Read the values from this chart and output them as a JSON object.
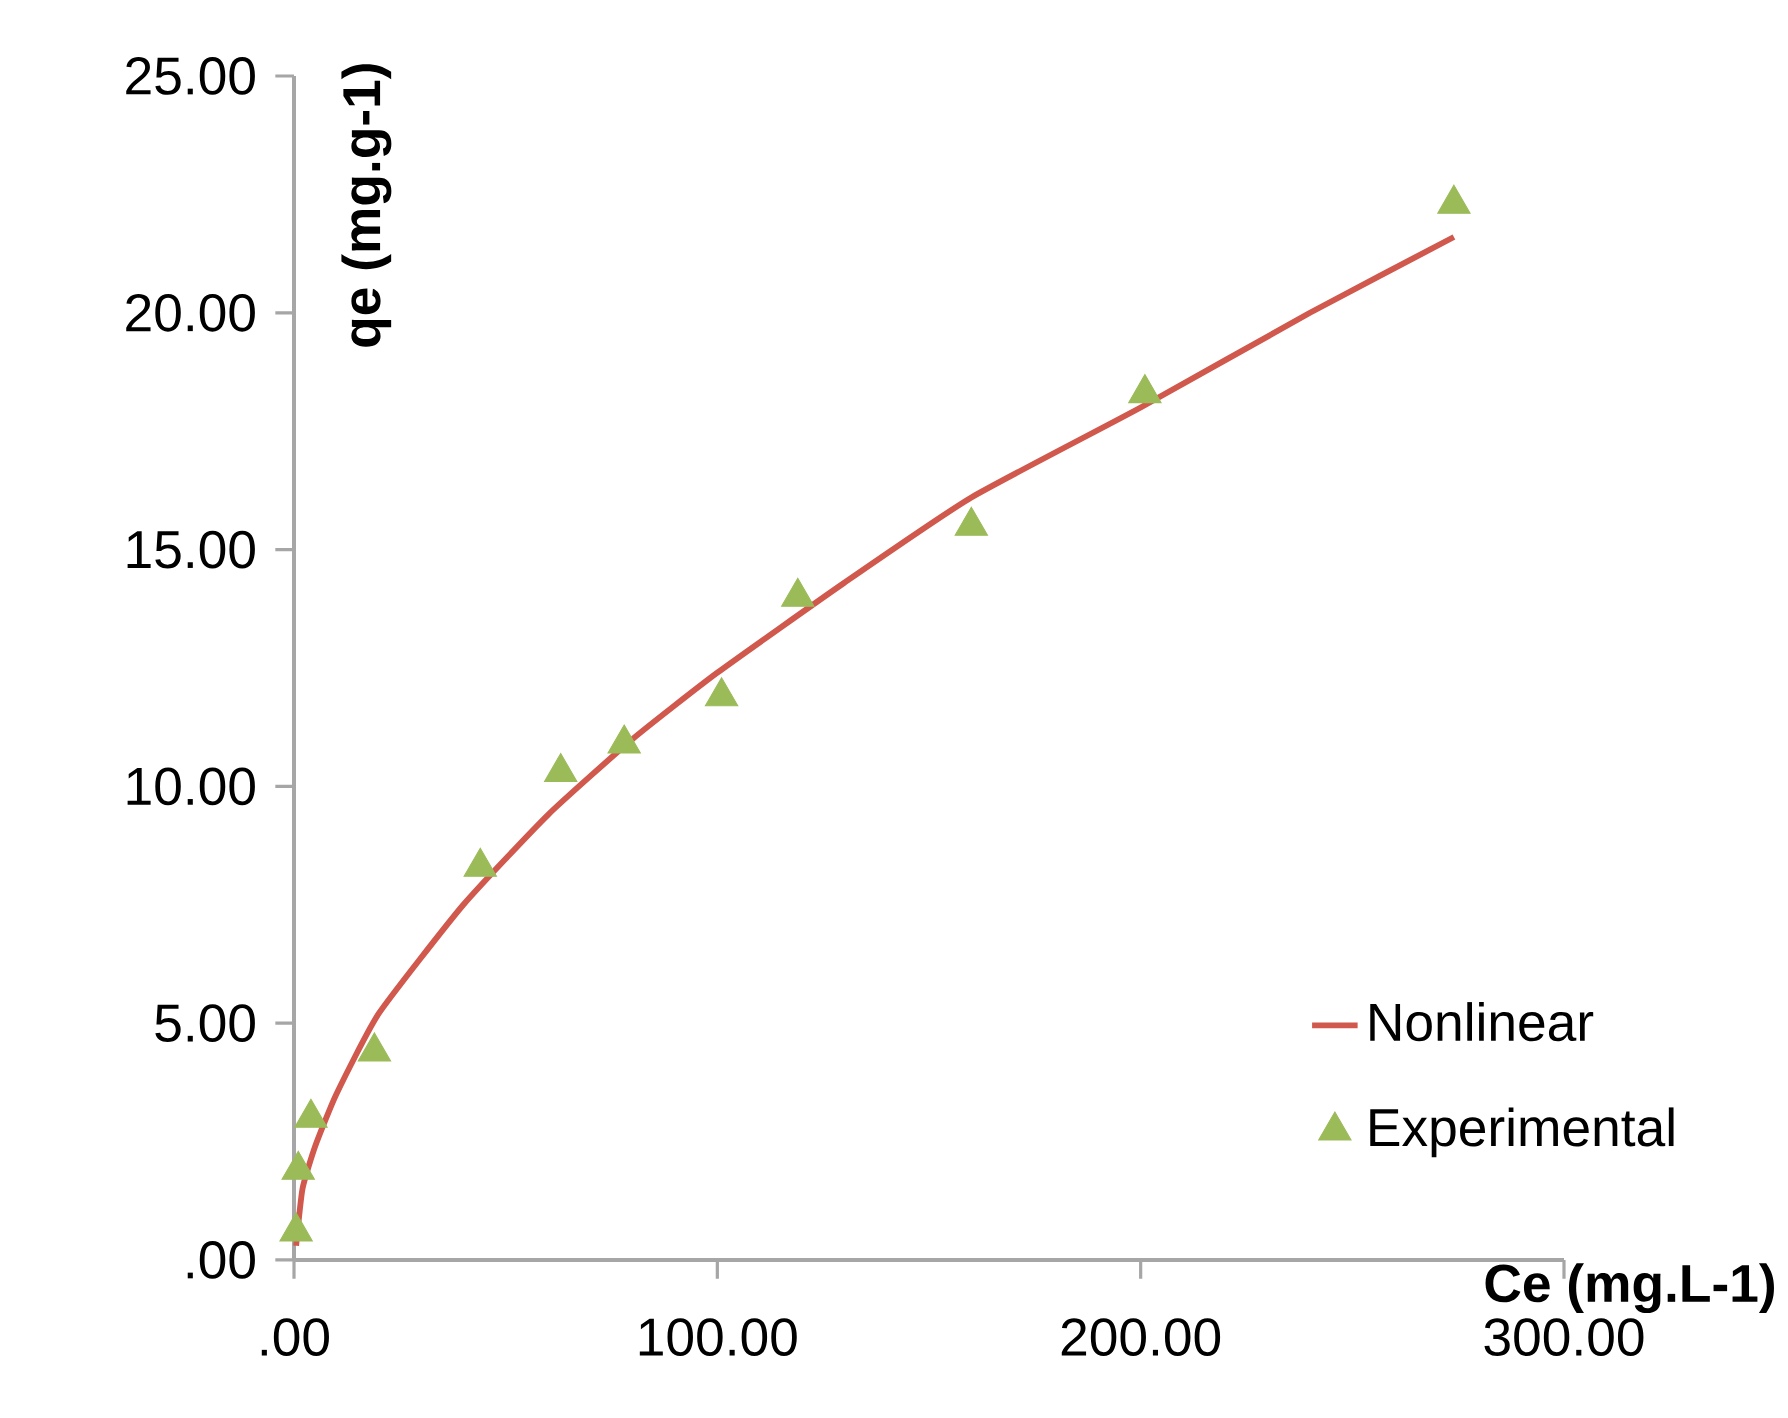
{
  "chart_data": {
    "type": "line",
    "xlabel": "Ce (mg.L-1)",
    "ylabel": "qe (mg.g-1)",
    "xlim": [
      0,
      300
    ],
    "ylim": [
      0,
      25
    ],
    "xticks": [
      {
        "value": 0,
        "label": ".00"
      },
      {
        "value": 100,
        "label": "100.00"
      },
      {
        "value": 200,
        "label": "200.00"
      },
      {
        "value": 300,
        "label": "300.00"
      }
    ],
    "yticks": [
      {
        "value": 0,
        "label": ".00"
      },
      {
        "value": 5,
        "label": "5.00"
      },
      {
        "value": 10,
        "label": "10.00"
      },
      {
        "value": 15,
        "label": "15.00"
      },
      {
        "value": 20,
        "label": "20.00"
      },
      {
        "value": 25,
        "label": "25.00"
      }
    ],
    "grid": false,
    "legend": "bottom right",
    "series": [
      {
        "name": "Nonlinear",
        "color": "#d0584c",
        "marker": "none",
        "line_style": "solid",
        "x": [
          0.5,
          2,
          5,
          10,
          20,
          40,
          60,
          80,
          100,
          130,
          160,
          200,
          240,
          274
        ],
        "values": [
          0.3,
          1.5,
          2.4,
          3.5,
          5.2,
          7.5,
          9.4,
          11.0,
          12.4,
          14.3,
          16.1,
          18.0,
          20.0,
          21.6
        ]
      },
      {
        "name": "Experimental",
        "type": "scatter",
        "color": "#9bbb59",
        "marker": "triangle",
        "x": [
          0.5,
          1,
          4,
          19,
          44,
          63,
          78,
          101,
          119,
          160,
          201,
          274
        ],
        "values": [
          0.6,
          1.9,
          3.0,
          4.4,
          8.3,
          10.3,
          10.9,
          11.9,
          14.0,
          15.5,
          18.3,
          22.3
        ]
      }
    ]
  }
}
